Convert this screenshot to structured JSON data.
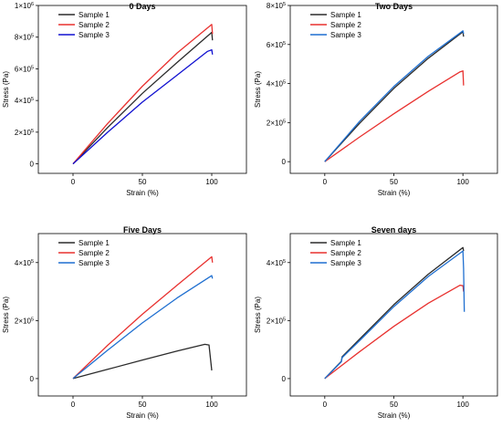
{
  "chart_data": [
    {
      "type": "line",
      "title": "0 Days",
      "xlabel": "Strain (%)",
      "ylabel": "Stress (Pa)",
      "xlim": [
        -25,
        125
      ],
      "ylim": [
        -60000,
        1000000
      ],
      "xticks": [
        {
          "v": 0,
          "label": "0"
        },
        {
          "v": 50,
          "label": "50"
        },
        {
          "v": 100,
          "label": "100"
        }
      ],
      "yticks": [
        {
          "v": 0,
          "mant": "0",
          "exp": ""
        },
        {
          "v": 200000,
          "mant": "2×10",
          "exp": "5"
        },
        {
          "v": 400000,
          "mant": "4×10",
          "exp": "5"
        },
        {
          "v": 600000,
          "mant": "6×10",
          "exp": "5"
        },
        {
          "v": 800000,
          "mant": "8×10",
          "exp": "5"
        },
        {
          "v": 1000000,
          "mant": "1×10",
          "exp": "6"
        }
      ],
      "legend_position": "top-left",
      "series": [
        {
          "name": "Sample 1",
          "color": "#2b2b2b",
          "x": [
            0,
            25,
            50,
            75,
            100,
            100.5
          ],
          "y": [
            0,
            230000,
            445000,
            640000,
            830000,
            780000
          ]
        },
        {
          "name": "Sample 2",
          "color": "#e8312f",
          "x": [
            0,
            25,
            50,
            75,
            100,
            100.5
          ],
          "y": [
            0,
            255000,
            490000,
            700000,
            880000,
            820000
          ]
        },
        {
          "name": "Sample 3",
          "color": "#1010d0",
          "x": [
            0,
            25,
            50,
            75,
            97,
            100,
            100.5
          ],
          "y": [
            0,
            200000,
            390000,
            560000,
            710000,
            720000,
            690000
          ]
        }
      ]
    },
    {
      "type": "line",
      "title": "Two Days",
      "xlabel": "Strain (%)",
      "ylabel": "Stress (Pa)",
      "xlim": [
        -25,
        125
      ],
      "ylim": [
        -60000,
        800000
      ],
      "xticks": [
        {
          "v": 0,
          "label": "0"
        },
        {
          "v": 50,
          "label": "50"
        },
        {
          "v": 100,
          "label": "100"
        }
      ],
      "yticks": [
        {
          "v": 0,
          "mant": "0",
          "exp": ""
        },
        {
          "v": 200000,
          "mant": "2×10",
          "exp": "5"
        },
        {
          "v": 400000,
          "mant": "4×10",
          "exp": "5"
        },
        {
          "v": 600000,
          "mant": "6×10",
          "exp": "5"
        },
        {
          "v": 800000,
          "mant": "8×10",
          "exp": "5"
        }
      ],
      "legend_position": "top-left",
      "series": [
        {
          "name": "Sample 1",
          "color": "#2b2b2b",
          "x": [
            0,
            25,
            50,
            75,
            100,
            100.5
          ],
          "y": [
            0,
            195000,
            375000,
            530000,
            665000,
            640000
          ]
        },
        {
          "name": "Sample 2",
          "color": "#e8312f",
          "x": [
            0,
            25,
            50,
            75,
            98,
            100,
            100.5
          ],
          "y": [
            0,
            125000,
            245000,
            360000,
            460000,
            465000,
            390000
          ]
        },
        {
          "name": "Sample 3",
          "color": "#1f6fd0",
          "x": [
            0,
            25,
            50,
            75,
            100,
            100.5
          ],
          "y": [
            0,
            205000,
            385000,
            540000,
            670000,
            655000
          ]
        }
      ]
    },
    {
      "type": "line",
      "title": "Five Days",
      "xlabel": "Strain (%)",
      "ylabel": "Stress (Pa)",
      "xlim": [
        -25,
        125
      ],
      "ylim": [
        -60000,
        500000
      ],
      "xticks": [
        {
          "v": 0,
          "label": "0"
        },
        {
          "v": 50,
          "label": "50"
        },
        {
          "v": 100,
          "label": "100"
        }
      ],
      "yticks": [
        {
          "v": 0,
          "mant": "0",
          "exp": ""
        },
        {
          "v": 200000,
          "mant": "2×10",
          "exp": "5"
        },
        {
          "v": 400000,
          "mant": "4×10",
          "exp": "5"
        }
      ],
      "legend_position": "top-left",
      "series": [
        {
          "name": "Sample 1",
          "color": "#2b2b2b",
          "x": [
            0,
            25,
            50,
            75,
            95,
            98,
            100
          ],
          "y": [
            0,
            32000,
            64000,
            95000,
            118000,
            116000,
            28000
          ]
        },
        {
          "name": "Sample 2",
          "color": "#e8312f",
          "x": [
            0,
            25,
            50,
            75,
            100,
            100.5
          ],
          "y": [
            0,
            115000,
            222000,
            322000,
            420000,
            400000
          ]
        },
        {
          "name": "Sample 3",
          "color": "#1f6fd0",
          "x": [
            0,
            25,
            50,
            75,
            100,
            100.5
          ],
          "y": [
            0,
            98000,
            192000,
            278000,
            355000,
            345000
          ]
        }
      ]
    },
    {
      "type": "line",
      "title": "Seven days",
      "xlabel": "Strain (%)",
      "ylabel": "Stress (Pa)",
      "xlim": [
        -25,
        125
      ],
      "ylim": [
        -60000,
        500000
      ],
      "xticks": [
        {
          "v": 0,
          "label": "0"
        },
        {
          "v": 50,
          "label": "50"
        },
        {
          "v": 100,
          "label": "100"
        }
      ],
      "yticks": [
        {
          "v": 0,
          "mant": "0",
          "exp": ""
        },
        {
          "v": 200000,
          "mant": "2×10",
          "exp": "5"
        },
        {
          "v": 400000,
          "mant": "4×10",
          "exp": "5"
        }
      ],
      "legend_position": "top-left",
      "series": [
        {
          "name": "Sample 1",
          "color": "#2b2b2b",
          "x": [
            0,
            12,
            12.5,
            25,
            50,
            75,
            100,
            100.5
          ],
          "y": [
            0,
            60000,
            75000,
            135000,
            255000,
            360000,
            452000,
            440000
          ]
        },
        {
          "name": "Sample 2",
          "color": "#e8312f",
          "x": [
            0,
            25,
            50,
            75,
            98,
            100,
            100.5
          ],
          "y": [
            0,
            92000,
            180000,
            260000,
            322000,
            320000,
            300000
          ]
        },
        {
          "name": "Sample 3",
          "color": "#1f6fd0",
          "x": [
            0,
            12,
            12.5,
            25,
            50,
            75,
            100,
            100.5,
            101
          ],
          "y": [
            0,
            58000,
            72000,
            130000,
            248000,
            352000,
            440000,
            380000,
            230000
          ]
        }
      ]
    }
  ]
}
